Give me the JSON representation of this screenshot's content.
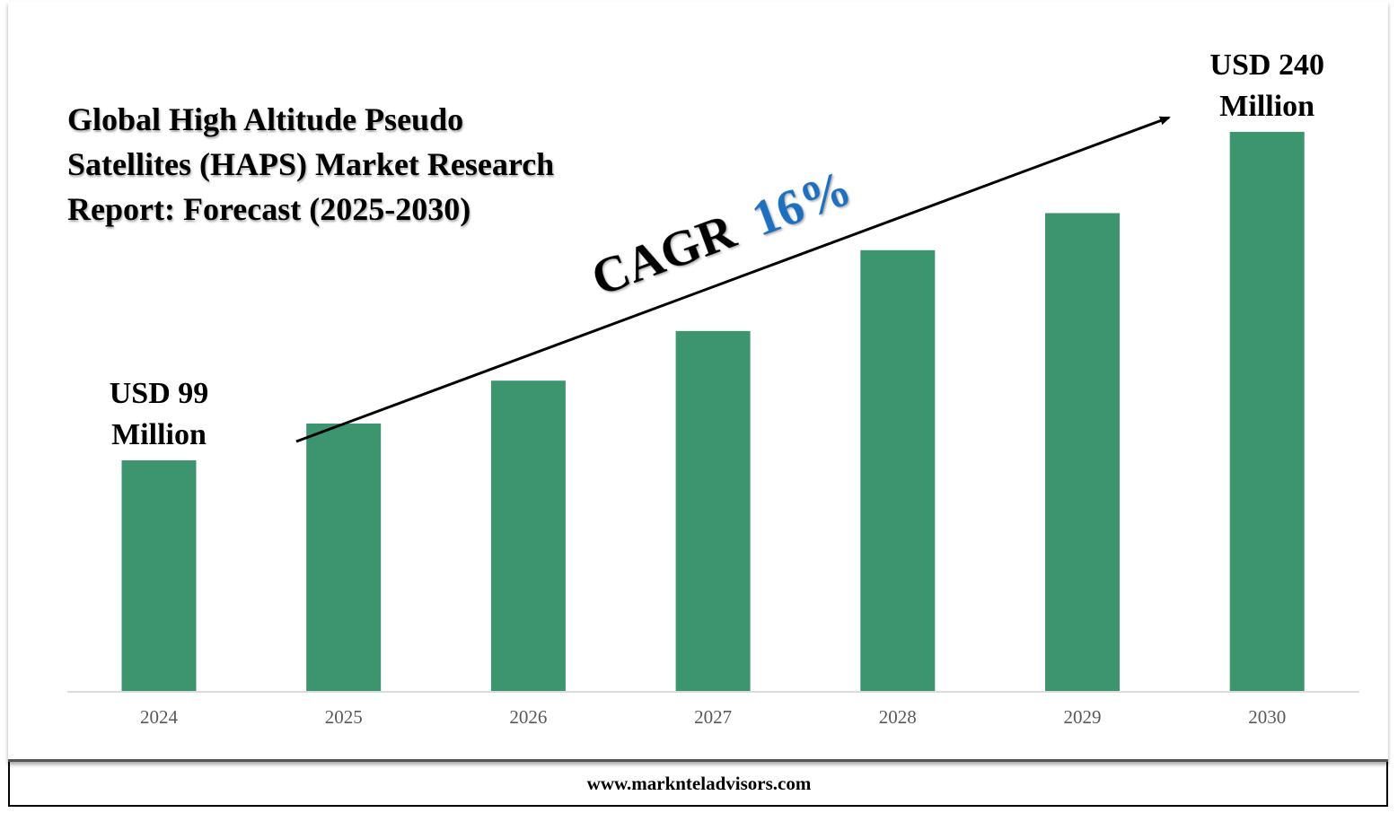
{
  "chart_data": {
    "type": "bar",
    "title": "Global High Altitude Pseudo Satellites (HAPS) Market Research Report: Forecast (2025-2030)",
    "categories": [
      "2024",
      "2025",
      "2026",
      "2027",
      "2028",
      "2029",
      "2030"
    ],
    "values": [
      99,
      114.8,
      133.2,
      154.5,
      189.2,
      205.1,
      240
    ],
    "ylim": [
      0,
      260
    ],
    "grid": false,
    "legend": "none",
    "bar_color": "#3D9570",
    "annotations": {
      "first_value": [
        "USD 99",
        "Million"
      ],
      "last_value": [
        "USD 240",
        "Million"
      ],
      "cagr_label": "CAGR",
      "cagr_value": "16%"
    },
    "cagr_color": "#1F6FBF"
  },
  "footer": {
    "website": "www.marknteladvisors.com"
  }
}
